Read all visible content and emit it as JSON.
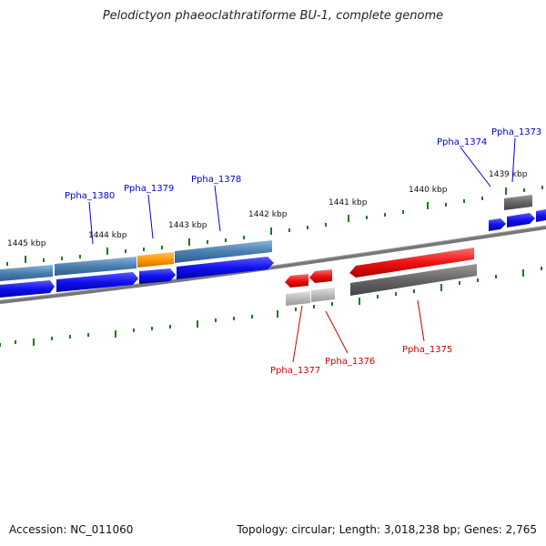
{
  "title": "Pelodictyon phaeoclathratiforme BU-1, complete genome",
  "footer": {
    "accession": "Accession: NC_011060",
    "summary": "Topology: circular; Length: 3,018,238 bp; Genes: 2,765"
  },
  "colors": {
    "blue_gene": "#1010ee",
    "steelblue_gene": "#4a7fb0",
    "orange_gene": "#ff9900",
    "red_gene": "#ee1111",
    "gray_gene": "#666666",
    "lightgray_gene": "#bbbbbb",
    "tick": "#1e7a1e",
    "backbone": "#777777",
    "label_blue": "#0000cc",
    "label_red": "#cc0000"
  },
  "kbp_labels": [
    "1445 kbp",
    "1444 kbp",
    "1443 kbp",
    "1442 kbp",
    "1441 kbp",
    "1440 kbp",
    "1439 kbp"
  ],
  "gene_labels_forward": [
    "Ppha_1380",
    "Ppha_1379",
    "Ppha_1378",
    "Ppha_1374",
    "Ppha_1373"
  ],
  "gene_labels_reverse": [
    "Ppha_1377",
    "Ppha_1376",
    "Ppha_1375"
  ]
}
